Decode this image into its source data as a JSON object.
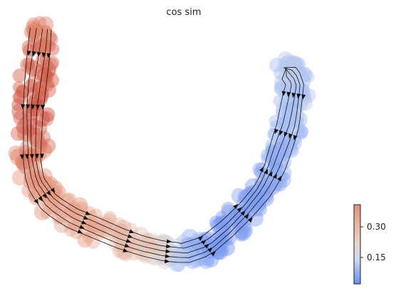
{
  "chart_data": {
    "type": "scatter",
    "title": "cos sim",
    "xlabel": "",
    "ylabel": "",
    "axes_visible": false,
    "overlay": "velocity streamlines with arrowheads",
    "colormap": {
      "name": "coolwarm",
      "low_color": "#3b4cc0",
      "mid_color": "#dddddd",
      "high_color": "#b40426"
    },
    "colorbar": {
      "label": "",
      "ticks": [
        {
          "value": 0.15,
          "label": "0.15"
        },
        {
          "value": 0.3,
          "label": "0.30"
        }
      ],
      "range": [
        0.05,
        0.38
      ]
    },
    "clusters": [
      {
        "branch": "left upper arm",
        "approx_cos_sim": 0.34
      },
      {
        "branch": "left lower arm",
        "approx_cos_sim": 0.3
      },
      {
        "branch": "bottom left curve",
        "approx_cos_sim": 0.26
      },
      {
        "branch": "bottom center",
        "approx_cos_sim": 0.2
      },
      {
        "branch": "bottom right curve",
        "approx_cos_sim": 0.08
      },
      {
        "branch": "right middle arm",
        "approx_cos_sim": 0.09
      },
      {
        "branch": "right upper arm",
        "approx_cos_sim": 0.14
      }
    ]
  }
}
